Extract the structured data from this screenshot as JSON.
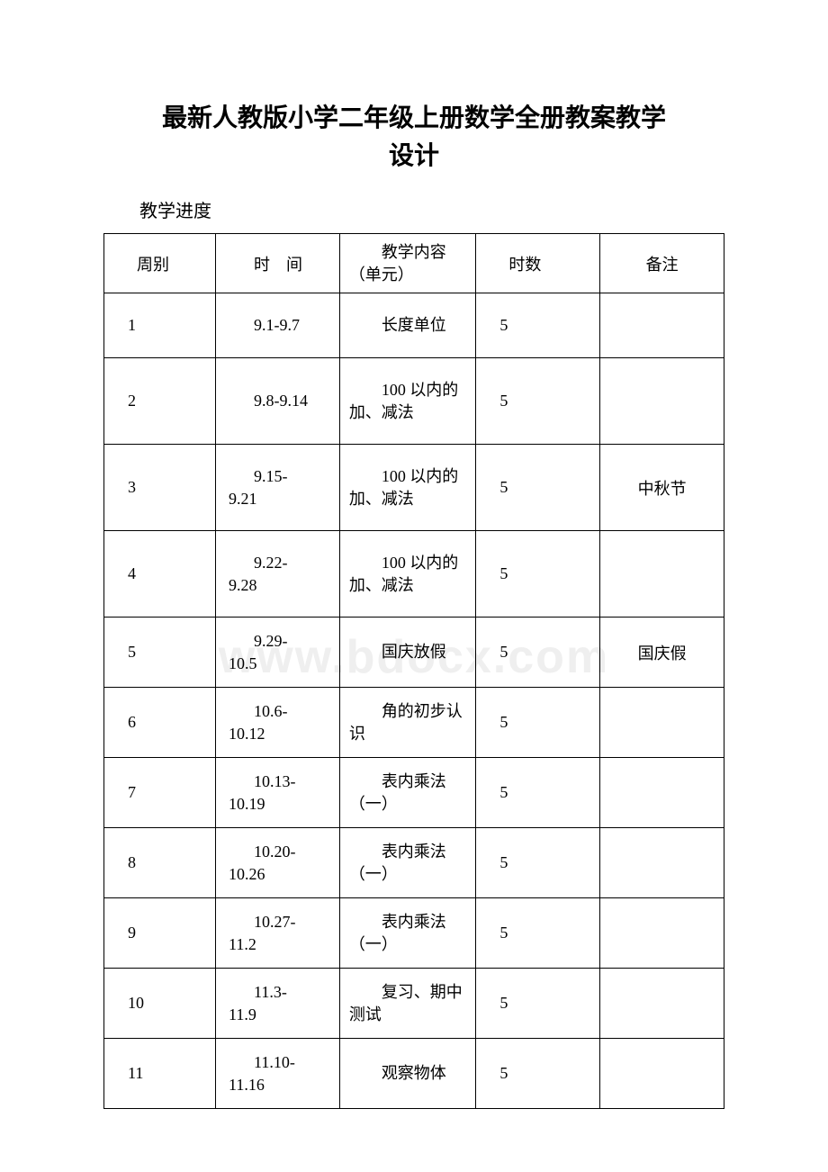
{
  "title_line1": "最新人教版小学二年级上册数学全册教案教学",
  "title_line2": "设计",
  "subheading": "教学进度",
  "watermark": "www.bdocx.com",
  "table": {
    "header": {
      "week": "周别",
      "time": "时　间",
      "content": "教学内容（单元）",
      "hours": "时数",
      "note": "备注"
    },
    "rows": [
      {
        "week": "1",
        "time": "9.1-9.7",
        "time_wrap": false,
        "content": "长度单位",
        "hours": "5",
        "note": ""
      },
      {
        "week": "2",
        "time": "9.8-9.14",
        "time_wrap": false,
        "content": "100 以内的加、减法",
        "hours": "5",
        "note": ""
      },
      {
        "week": "3",
        "time": "9.15-9.21",
        "time_wrap": true,
        "content": "100 以内的加、减法",
        "hours": "5",
        "note": "中秋节"
      },
      {
        "week": "4",
        "time": "9.22-9.28",
        "time_wrap": true,
        "content": "100 以内的加、减法",
        "hours": "5",
        "note": ""
      },
      {
        "week": "5",
        "time": "9.29-10.5",
        "time_wrap": true,
        "content": "国庆放假",
        "hours": "5",
        "note": "国庆假"
      },
      {
        "week": "6",
        "time": "10.6-10.12",
        "time_wrap": true,
        "content": "角的初步认识",
        "hours": "5",
        "note": ""
      },
      {
        "week": "7",
        "time": "10.13-10.19",
        "time_wrap": true,
        "content": "表内乘法（一）",
        "hours": "5",
        "note": ""
      },
      {
        "week": "8",
        "time": "10.20-10.26",
        "time_wrap": true,
        "content": "表内乘法（一）",
        "hours": "5",
        "note": ""
      },
      {
        "week": "9",
        "time": "10.27-11.2",
        "time_wrap": true,
        "content": "表内乘法（一）",
        "hours": "5",
        "note": ""
      },
      {
        "week": "10",
        "time": "11.3-11.9",
        "time_wrap": true,
        "content": "复习、期中测试",
        "hours": "5",
        "note": ""
      },
      {
        "week": "11",
        "time": "11.10-11.16",
        "time_wrap": true,
        "content": "观察物体",
        "hours": "5",
        "note": ""
      }
    ],
    "row_height_class": [
      "h2",
      "h3",
      "h3",
      "h3",
      "h2b",
      "h2b",
      "h2b",
      "h2b",
      "h2b",
      "h2b",
      "h2b"
    ]
  }
}
